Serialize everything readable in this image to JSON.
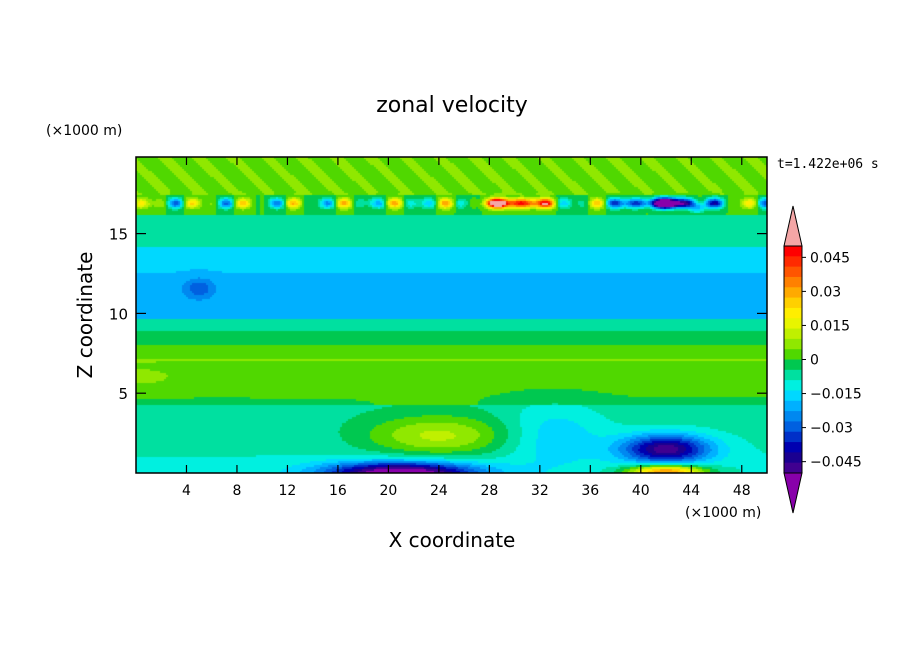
{
  "chart_data": {
    "type": "heatmap",
    "title": "zonal velocity",
    "xlabel": "X coordinate",
    "ylabel": "Z coordinate",
    "x_unit": "(×1000 m)",
    "y_unit": "(×1000 m)",
    "time_label": "t=1.422e+06 s",
    "xlim": [
      0,
      50
    ],
    "ylim": [
      0,
      19.8
    ],
    "x_ticks": [
      4,
      8,
      12,
      16,
      20,
      24,
      28,
      32,
      36,
      40,
      44,
      48
    ],
    "y_ticks": [
      5,
      10,
      15
    ],
    "colorbar": {
      "range": [
        -0.05,
        0.05
      ],
      "step": 0.005,
      "tick_values": [
        0.045,
        0.03,
        0.015,
        0,
        -0.015,
        -0.03,
        -0.045
      ],
      "tick_labels": [
        "0.045",
        "0.03",
        "0.015",
        "0",
        "−0.015",
        "−0.03",
        "−0.045"
      ],
      "colors": [
        "#ff0000",
        "#ff2a00",
        "#ff5500",
        "#ff8000",
        "#ffaa00",
        "#ffd000",
        "#ffee00",
        "#e8f500",
        "#c0f000",
        "#90e800",
        "#50d800",
        "#00c850",
        "#00e0a0",
        "#00f0e0",
        "#00d8ff",
        "#00b0ff",
        "#0088f0",
        "#0060e0",
        "#0030c8",
        "#0000b0",
        "#1a0090",
        "#400090"
      ],
      "over_color": "#f4a6a6",
      "under_color": "#8800aa"
    },
    "field_description_points": [
      {
        "x": 21,
        "z": 0.2,
        "value": -0.048
      },
      {
        "x": 42,
        "z": 1.6,
        "value": -0.04
      },
      {
        "x": 42,
        "z": 0.3,
        "value": 0.035
      },
      {
        "x": 24,
        "z": 2.2,
        "value": 0.012
      },
      {
        "x": 5,
        "z": 11.7,
        "value": -0.03
      },
      {
        "x": 30,
        "z": 16.8,
        "value": 0.05
      },
      {
        "x": 42,
        "z": 16.8,
        "value": -0.045
      },
      {
        "x": 20,
        "z": 6.5,
        "value": 0.004
      }
    ]
  }
}
